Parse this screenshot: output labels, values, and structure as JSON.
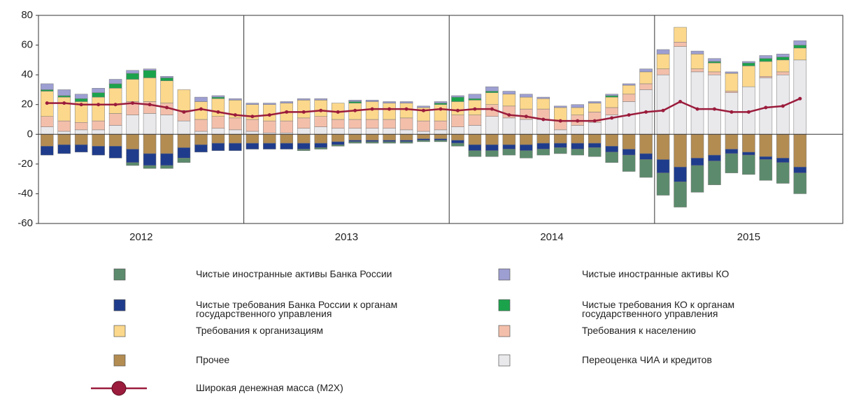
{
  "chart_data": {
    "type": "stacked_bar_line",
    "categories": [
      "2012",
      "2012",
      "2012",
      "2012",
      "2012",
      "2012",
      "2012",
      "2012",
      "2012",
      "2012",
      "2012",
      "2012",
      "2013",
      "2013",
      "2013",
      "2013",
      "2013",
      "2013",
      "2013",
      "2013",
      "2013",
      "2013",
      "2013",
      "2013",
      "2014",
      "2014",
      "2014",
      "2014",
      "2014",
      "2014",
      "2014",
      "2014",
      "2014",
      "2014",
      "2014",
      "2014",
      "2015",
      "2015",
      "2015",
      "2015",
      "2015",
      "2015",
      "2015",
      "2015",
      "2015"
    ],
    "ylim": [
      -60,
      80
    ],
    "yticks": [
      -60,
      -40,
      -20,
      0,
      20,
      40,
      60,
      80
    ],
    "series": [
      {
        "name": "Чистые иностранные активы Банка России",
        "color": "#5b8b6c",
        "values": [
          0,
          0,
          0,
          0,
          0,
          -2,
          -2,
          -2,
          -3,
          0,
          0,
          0,
          0,
          0,
          0,
          -1,
          -1,
          -1,
          -1,
          -1,
          -1,
          -1,
          -1,
          -1,
          -2,
          -4,
          -4,
          -4,
          -5,
          -4,
          -4,
          -4,
          -6,
          -7,
          -11,
          -12,
          -15,
          -17,
          -18,
          -16,
          -13,
          -13,
          -14,
          -14,
          -14
        ]
      },
      {
        "name": "Чистые иностранные активы КО",
        "color": "#9d9fd2",
        "values": [
          4,
          4,
          3,
          3,
          3,
          2,
          1,
          1,
          0,
          3,
          1,
          1,
          1,
          1,
          1,
          1,
          1,
          0,
          1,
          1,
          1,
          1,
          1,
          1,
          1,
          3,
          3,
          2,
          2,
          1,
          1,
          2,
          1,
          1,
          1,
          2,
          3,
          0,
          2,
          2,
          1,
          1,
          2,
          2,
          3
        ]
      },
      {
        "name": "Чистые требования Банка России к органам государственного управления",
        "color": "#1f3c8c",
        "values": [
          -6,
          -6,
          -5,
          -6,
          -8,
          -9,
          -8,
          -8,
          -7,
          -5,
          -5,
          -5,
          -4,
          -4,
          -4,
          -4,
          -3,
          -2,
          -1,
          -1,
          -1,
          -1,
          -1,
          -1,
          -2,
          -4,
          -4,
          -3,
          -4,
          -4,
          -3,
          -4,
          -3,
          -4,
          -4,
          -4,
          -9,
          -10,
          -5,
          -4,
          -3,
          -2,
          -2,
          -3,
          -4
        ]
      },
      {
        "name": "Чистые требования КО к органам государственного управления",
        "color": "#1ba34c",
        "values": [
          1,
          1,
          2,
          3,
          3,
          4,
          5,
          2,
          0,
          0,
          1,
          0,
          0,
          0,
          0,
          0,
          0,
          0,
          1,
          0,
          0,
          0,
          0,
          1,
          3,
          1,
          1,
          0,
          0,
          0,
          0,
          0,
          0,
          1,
          0,
          0,
          0,
          0,
          0,
          1,
          0,
          2,
          2,
          2,
          2
        ]
      },
      {
        "name": "Требования к организациям",
        "color": "#fcd88c",
        "values": [
          17,
          16,
          14,
          16,
          17,
          15,
          16,
          15,
          14,
          12,
          12,
          12,
          10,
          11,
          12,
          12,
          11,
          11,
          11,
          12,
          11,
          10,
          9,
          11,
          9,
          10,
          8,
          8,
          8,
          7,
          9,
          5,
          6,
          7,
          6,
          8,
          10,
          10,
          10,
          6,
          12,
          14,
          10,
          8,
          8
        ]
      },
      {
        "name": "Требования к населению",
        "color": "#f3bfab",
        "values": [
          7,
          7,
          5,
          6,
          8,
          9,
          8,
          8,
          7,
          8,
          8,
          8,
          8,
          8,
          8,
          7,
          7,
          6,
          6,
          6,
          6,
          8,
          7,
          6,
          8,
          7,
          8,
          8,
          7,
          7,
          6,
          7,
          7,
          5,
          5,
          4,
          4,
          3,
          2,
          2,
          1,
          0,
          1,
          2,
          0
        ]
      },
      {
        "name": "Прочее",
        "color": "#b38c52",
        "values": [
          -8,
          -7,
          -7,
          -8,
          -8,
          -10,
          -13,
          -13,
          -9,
          -7,
          -6,
          -6,
          -6,
          -6,
          -6,
          -6,
          -6,
          -5,
          -4,
          -4,
          -4,
          -4,
          -3,
          -3,
          -4,
          -7,
          -7,
          -7,
          -7,
          -6,
          -6,
          -6,
          -6,
          -8,
          -10,
          -13,
          -17,
          -22,
          -16,
          -14,
          -10,
          -12,
          -15,
          -16,
          -22
        ]
      },
      {
        "name": "Переоценка ЧИА и кредитов",
        "color": "#e9e9ec",
        "values": [
          5,
          2,
          3,
          3,
          6,
          13,
          14,
          13,
          9,
          2,
          4,
          3,
          2,
          1,
          1,
          4,
          5,
          4,
          4,
          4,
          4,
          3,
          2,
          3,
          5,
          6,
          12,
          11,
          10,
          10,
          3,
          6,
          8,
          13,
          22,
          30,
          40,
          59,
          42,
          40,
          28,
          32,
          38,
          40,
          50
        ]
      }
    ],
    "line": {
      "name": "Широкая денежная масса (M2X)",
      "color": "#9b1c3c",
      "values": [
        21,
        21,
        20,
        20,
        20,
        21,
        20,
        18,
        15,
        17,
        15,
        13,
        12,
        13,
        15,
        15,
        16,
        15,
        16,
        17,
        17,
        17,
        16,
        17,
        16,
        17,
        17,
        13,
        12,
        10,
        9,
        9,
        9,
        11,
        13,
        15,
        16,
        22,
        17,
        17,
        15,
        15,
        18,
        19,
        24
      ]
    }
  }
}
